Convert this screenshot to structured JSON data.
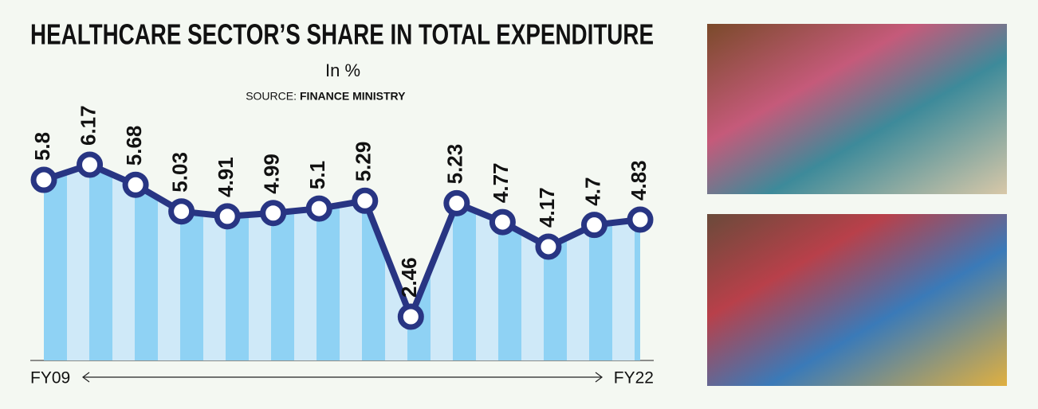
{
  "chart_data": {
    "type": "line",
    "title": "HEALTHCARE SECTOR’S SHARE IN TOTAL EXPENDITURE",
    "subtitle": "In %",
    "source_label": "SOURCE:",
    "source": "FINANCE MINISTRY",
    "categories": [
      "FY09",
      null,
      null,
      null,
      null,
      null,
      null,
      null,
      null,
      null,
      null,
      null,
      null,
      "FY22"
    ],
    "values": [
      5.8,
      6.17,
      5.68,
      5.03,
      4.91,
      4.99,
      5.1,
      5.29,
      2.46,
      5.23,
      4.77,
      4.17,
      4.7,
      4.83
    ],
    "color": "#283583"
  }
}
